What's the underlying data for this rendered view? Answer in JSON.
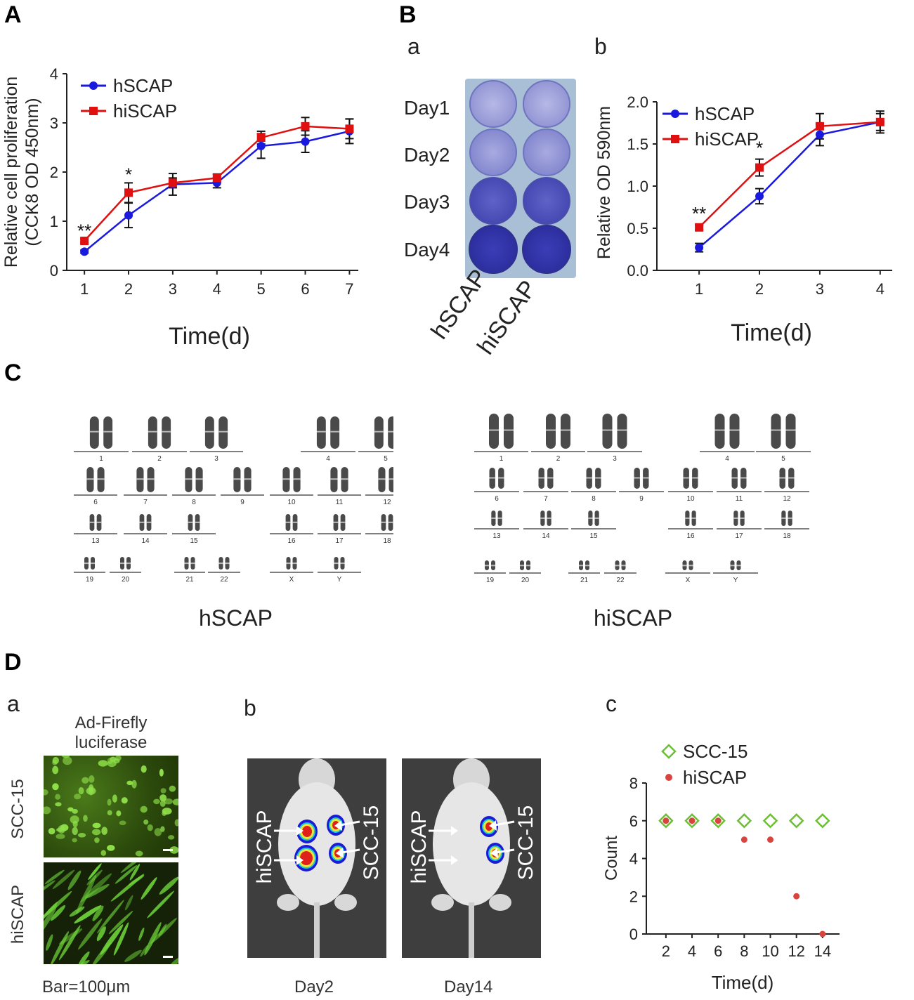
{
  "panels": {
    "A": "A",
    "B": "B",
    "C": "C",
    "D": "D"
  },
  "sub": {
    "Ba": "a",
    "Bb": "b",
    "Da": "a",
    "Db": "b",
    "Dc": "c"
  },
  "chart_data": [
    {
      "id": "A",
      "type": "line",
      "title": "",
      "xlabel": "Time(d)",
      "ylabel_line1": "Relative cell proliferation",
      "ylabel_line2": "(CCK8 OD 450nm)",
      "x": [
        1,
        2,
        3,
        4,
        5,
        6,
        7
      ],
      "xlim": [
        0.6,
        7.2
      ],
      "ylim": [
        0,
        4
      ],
      "yticks": [
        0,
        1,
        2,
        3,
        4
      ],
      "series": [
        {
          "name": "hSCAP",
          "color": "#1a1adf",
          "marker": "circle",
          "values": [
            0.38,
            1.12,
            1.75,
            1.78,
            2.53,
            2.62,
            2.83
          ],
          "err": [
            0.03,
            0.25,
            0.22,
            0.1,
            0.25,
            0.22,
            0.25
          ]
        },
        {
          "name": "hiSCAP",
          "color": "#e01010",
          "marker": "square",
          "values": [
            0.6,
            1.58,
            1.78,
            1.88,
            2.7,
            2.93,
            2.88
          ],
          "err": [
            0.04,
            0.2,
            0.1,
            0.08,
            0.13,
            0.18,
            0.2
          ]
        }
      ],
      "annotations": [
        {
          "x": 1,
          "y": 0.68,
          "text": "**"
        },
        {
          "x": 2,
          "y": 1.82,
          "text": "*"
        }
      ]
    },
    {
      "id": "Bb",
      "type": "line",
      "title": "",
      "xlabel": "Time(d)",
      "ylabel": "Relative OD 590nm",
      "x": [
        1,
        2,
        3,
        4
      ],
      "xlim": [
        0.3,
        4.2
      ],
      "ylim": [
        0,
        2.0
      ],
      "yticks": [
        "0.0",
        "0.5",
        "1.0",
        "1.5",
        "2.0"
      ],
      "series": [
        {
          "name": "hSCAP",
          "color": "#1a1adf",
          "marker": "circle",
          "values": [
            0.27,
            0.88,
            1.61,
            1.76
          ],
          "err": [
            0.05,
            0.09,
            0.13,
            0.13
          ]
        },
        {
          "name": "hiSCAP",
          "color": "#e01010",
          "marker": "square",
          "values": [
            0.51,
            1.22,
            1.71,
            1.76
          ],
          "err": [
            0.03,
            0.1,
            0.15,
            0.1
          ]
        }
      ],
      "annotations": [
        {
          "x": 1,
          "y": 0.6,
          "text": "**"
        },
        {
          "x": 2,
          "y": 1.38,
          "text": "*"
        }
      ]
    },
    {
      "id": "Dc",
      "type": "scatter",
      "title": "",
      "xlabel": "Time(d)",
      "ylabel": "Count",
      "x": [
        2,
        4,
        6,
        8,
        10,
        12,
        14
      ],
      "xlim": [
        0.5,
        15.3
      ],
      "ylim": [
        0,
        8
      ],
      "yticks": [
        0,
        2,
        4,
        6,
        8
      ],
      "series": [
        {
          "name": "SCC-15",
          "color": "#6cbf34",
          "marker": "diamond-open",
          "values": [
            6,
            6,
            6,
            6,
            6,
            6,
            6
          ]
        },
        {
          "name": "hiSCAP",
          "color": "#d9443f",
          "marker": "dot",
          "values": [
            6,
            6,
            6,
            5,
            5,
            2,
            0
          ]
        }
      ]
    }
  ],
  "plate": {
    "rows": [
      "Day1",
      "Day2",
      "Day3",
      "Day4"
    ],
    "cols": [
      "hSCAP",
      "hiSCAP"
    ]
  },
  "karyotype": {
    "left_title": "hSCAP",
    "right_title": "hiSCAP",
    "row1": [
      "1",
      "2",
      "3",
      "4",
      "5"
    ],
    "row2": [
      "6",
      "7",
      "8",
      "9",
      "10",
      "11",
      "12"
    ],
    "row3": [
      "13",
      "14",
      "15",
      "16",
      "17",
      "18"
    ],
    "row4": [
      "19",
      "20",
      "21",
      "22",
      "X",
      "Y"
    ]
  },
  "Da": {
    "header_line1": "Ad-Firefly",
    "header_line2": "luciferase",
    "row1": "SCC-15",
    "row2": "hiSCAP",
    "scale": "Bar=100μm"
  },
  "Db": {
    "left_label": "hiSCAP",
    "right_label": "SCC-15",
    "day_a": "Day2",
    "day_b": "Day14"
  }
}
